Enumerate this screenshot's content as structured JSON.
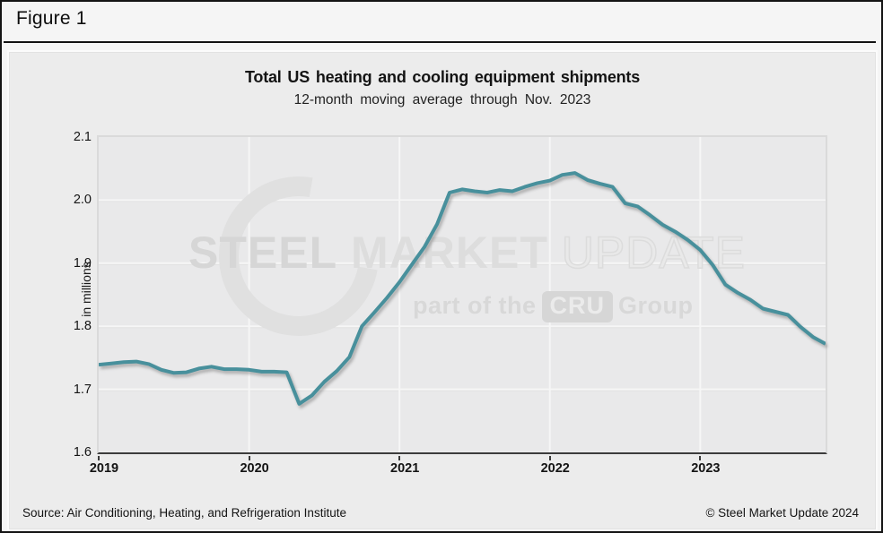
{
  "figure": {
    "label": "Figure 1"
  },
  "chart": {
    "title": "Total US heating and cooling equipment shipments",
    "subtitle": "12-month moving average through Nov. 2023",
    "y_axis": {
      "title": "in millions",
      "tick_labels": [
        "2.1",
        "2.0",
        "1.9",
        "1.8",
        "1.7",
        "1.6"
      ]
    },
    "x_axis": {
      "tick_labels": [
        "2019",
        "2020",
        "2021",
        "2022",
        "2023"
      ]
    }
  },
  "watermark": {
    "word1": "STEEL",
    "word2": "MARKET",
    "word3": "UPDATE",
    "tagline_prefix": "part of the",
    "tagline_box": "CRU",
    "tagline_suffix": "Group"
  },
  "footer": {
    "source": "Source: Air Conditioning, Heating, and Refrigeration Institute",
    "copyright": "© Steel Market Update 2024"
  },
  "colors": {
    "line": "#48909c",
    "gridline": "#f6f6f6",
    "gridline_edge": "#dedede",
    "panel_bg": "#ececec",
    "plot_bg": "#e9e9ea",
    "axis": "#3c3c3c"
  },
  "chart_data": {
    "type": "line",
    "title": "Total US heating and cooling equipment shipments",
    "subtitle": "12-month moving average through Nov. 2023",
    "ylabel": "in millions",
    "ylim": [
      1.6,
      2.1
    ],
    "y_gridlines": [
      1.7,
      1.8,
      1.9,
      2.0
    ],
    "grid": true,
    "legend": false,
    "x_start": "2019-01",
    "x_end": "2023-11",
    "frequency": "monthly",
    "x_tick_years": [
      2019,
      2020,
      2021,
      2022,
      2023
    ],
    "series": [
      {
        "name": "12-month moving average of total US heating and cooling equipment shipments (millions)",
        "values": [
          1.739,
          1.741,
          1.743,
          1.744,
          1.74,
          1.731,
          1.726,
          1.727,
          1.733,
          1.736,
          1.732,
          1.732,
          1.731,
          1.728,
          1.728,
          1.727,
          1.677,
          1.69,
          1.712,
          1.729,
          1.751,
          1.8,
          1.822,
          1.845,
          1.87,
          1.898,
          1.926,
          1.962,
          2.012,
          2.017,
          2.014,
          2.012,
          2.016,
          2.014,
          2.021,
          2.027,
          2.031,
          2.04,
          2.043,
          2.032,
          2.026,
          2.021,
          1.995,
          1.99,
          1.976,
          1.961,
          1.95,
          1.937,
          1.921,
          1.897,
          1.866,
          1.853,
          1.842,
          1.828,
          1.823,
          1.818,
          1.799,
          1.783,
          1.772
        ]
      }
    ]
  }
}
